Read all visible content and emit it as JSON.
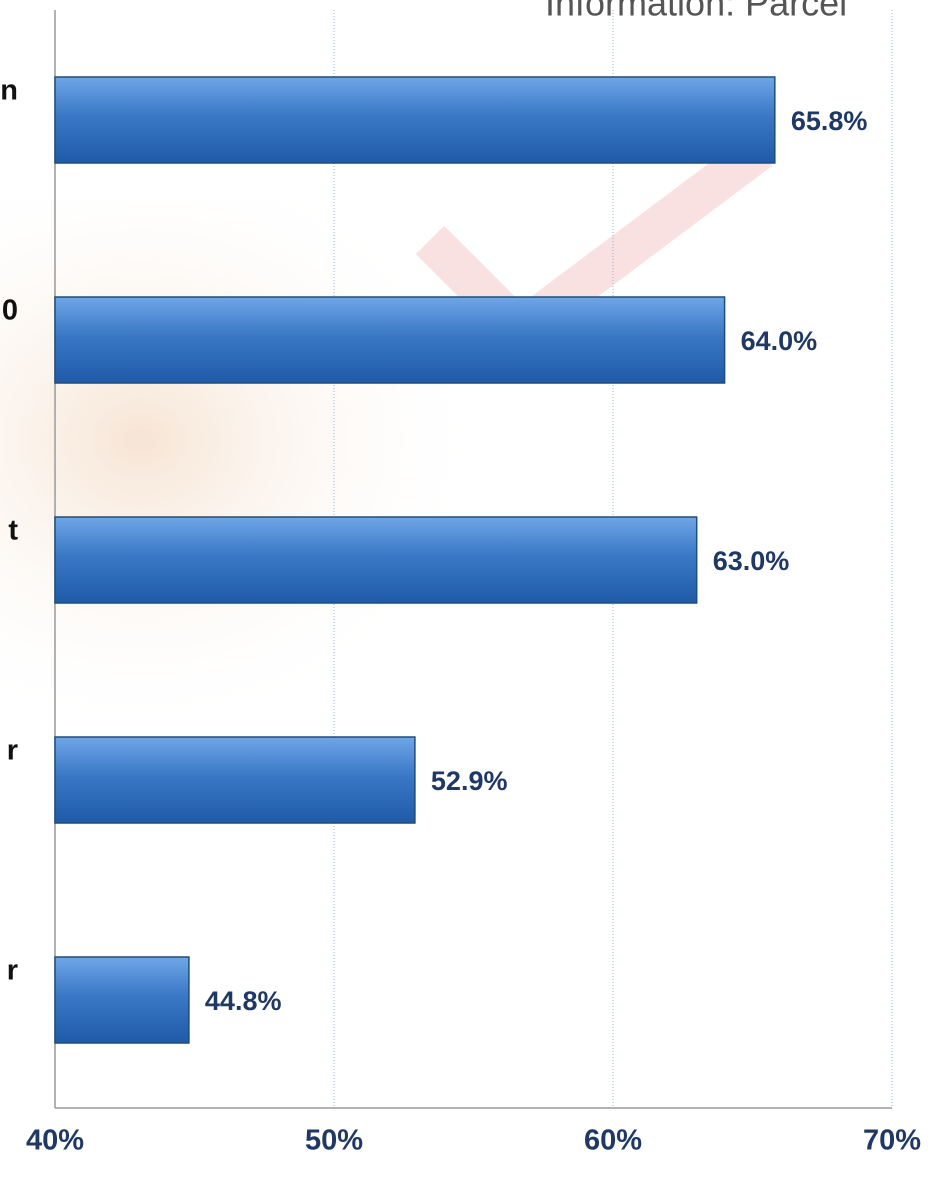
{
  "chart_data": {
    "type": "barh",
    "title": "Information: Parcel",
    "categories": [
      "n",
      "0",
      "t",
      "r",
      "r"
    ],
    "values": [
      65.8,
      64.0,
      63.0,
      52.9,
      44.8
    ],
    "value_labels": [
      "65.8%",
      "64.0%",
      "63.0%",
      "52.9%",
      "44.8%"
    ],
    "color": "#3a78c6",
    "xlim": [
      40,
      70
    ],
    "xticks": [
      {
        "value": 40,
        "label": "40%"
      },
      {
        "value": 50,
        "label": "50%"
      },
      {
        "value": 60,
        "label": "60%"
      },
      {
        "value": 70,
        "label": "70%"
      }
    ],
    "grid": true
  }
}
